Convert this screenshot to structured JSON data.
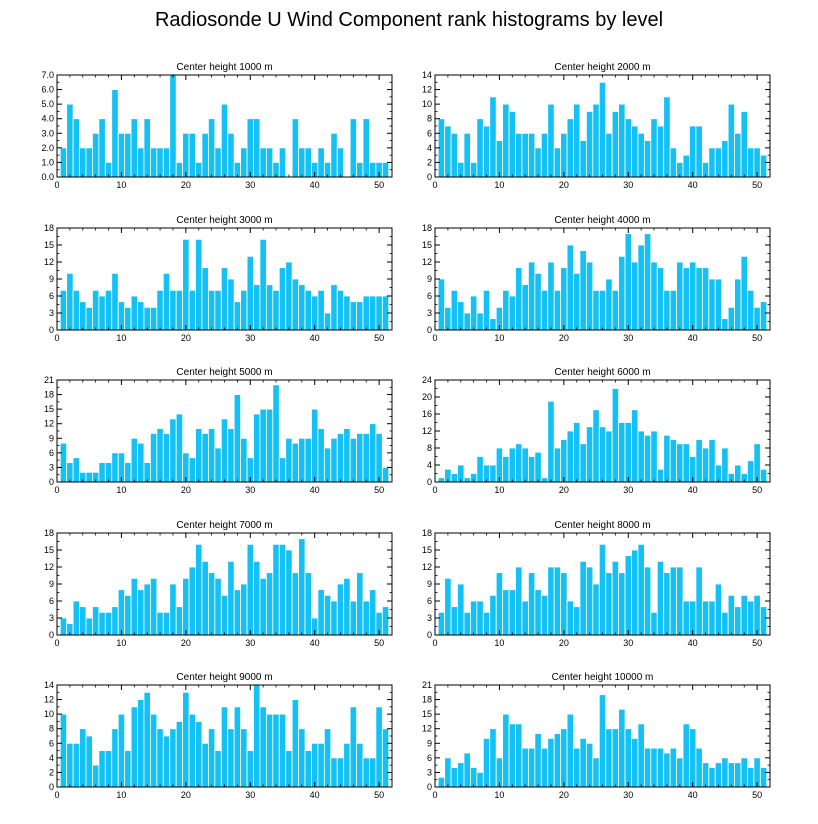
{
  "title": "Radiosonde U Wind Component rank histograms by level",
  "colors": {
    "bar": "#14c1f5",
    "bar_edge": "#ffffff",
    "axis": "#000000"
  },
  "chart_data": [
    {
      "type": "bar",
      "title": "Center height 1000 m",
      "xlim": [
        0,
        52
      ],
      "ylim": [
        0,
        7
      ],
      "xticks": [
        0,
        10,
        20,
        30,
        40,
        50
      ],
      "xtick_labels": [
        "0",
        "10",
        "20",
        "30",
        "40",
        "50"
      ],
      "yticks": [
        0,
        1,
        2,
        3,
        4,
        5,
        6,
        7
      ],
      "ytick_labels": [
        "0.0",
        "1.0",
        "2.0",
        "3.0",
        "4.0",
        "5.0",
        "6.0",
        "7.0"
      ],
      "values": [
        2,
        5,
        4,
        2,
        2,
        3,
        4,
        1,
        6,
        3,
        3,
        4,
        2,
        4,
        2,
        2,
        2,
        7,
        1,
        3,
        3,
        1,
        3,
        4,
        2,
        5,
        3,
        1,
        2,
        4,
        4,
        2,
        2,
        1,
        2,
        0,
        4,
        2,
        2,
        1,
        2,
        1,
        3,
        2,
        0,
        4,
        1,
        4,
        1,
        1,
        1
      ]
    },
    {
      "type": "bar",
      "title": "Center height 2000 m",
      "xlim": [
        0,
        52
      ],
      "ylim": [
        0,
        14
      ],
      "xticks": [
        0,
        10,
        20,
        30,
        40,
        50
      ],
      "xtick_labels": [
        "0",
        "10",
        "20",
        "30",
        "40",
        "50"
      ],
      "yticks": [
        0,
        2,
        4,
        6,
        8,
        10,
        12,
        14
      ],
      "ytick_labels": [
        "0",
        "2",
        "4",
        "6",
        "8",
        "10",
        "12",
        "14"
      ],
      "values": [
        8,
        7,
        6,
        2,
        6,
        2,
        8,
        7,
        11,
        5,
        10,
        9,
        6,
        6,
        6,
        4,
        6,
        10,
        4,
        6,
        8,
        10,
        5,
        9,
        10,
        13,
        6,
        9,
        10,
        8,
        7,
        6,
        5,
        8,
        7,
        11,
        4,
        2,
        3,
        7,
        7,
        2,
        4,
        4,
        5,
        10,
        6,
        9,
        4,
        4,
        3
      ]
    },
    {
      "type": "bar",
      "title": "Center height 3000 m",
      "xlim": [
        0,
        52
      ],
      "ylim": [
        0,
        18
      ],
      "xticks": [
        0,
        10,
        20,
        30,
        40,
        50
      ],
      "xtick_labels": [
        "0",
        "10",
        "20",
        "30",
        "40",
        "50"
      ],
      "yticks": [
        0,
        3,
        6,
        9,
        12,
        15,
        18
      ],
      "ytick_labels": [
        "0",
        "3",
        "6",
        "9",
        "12",
        "15",
        "18"
      ],
      "values": [
        7,
        10,
        7,
        5,
        4,
        7,
        6,
        7,
        10,
        5,
        4,
        6,
        5,
        4,
        4,
        7,
        10,
        7,
        7,
        16,
        7,
        16,
        11,
        7,
        7,
        11,
        9,
        5,
        7,
        13,
        8,
        16,
        8,
        7,
        11,
        12,
        9,
        8,
        7,
        6,
        7,
        3,
        8,
        7,
        6,
        5,
        5,
        6,
        6,
        6,
        6
      ]
    },
    {
      "type": "bar",
      "title": "Center height 4000 m",
      "xlim": [
        0,
        52
      ],
      "ylim": [
        0,
        18
      ],
      "xticks": [
        0,
        10,
        20,
        30,
        40,
        50
      ],
      "xtick_labels": [
        "0",
        "10",
        "20",
        "30",
        "40",
        "50"
      ],
      "yticks": [
        0,
        3,
        6,
        9,
        12,
        15,
        18
      ],
      "ytick_labels": [
        "0",
        "3",
        "6",
        "9",
        "12",
        "15",
        "18"
      ],
      "values": [
        9,
        4,
        7,
        5,
        3,
        6,
        3,
        7,
        2,
        4,
        7,
        6,
        11,
        8,
        12,
        10,
        7,
        12,
        7,
        11,
        15,
        10,
        14,
        12,
        7,
        7,
        9,
        7,
        13,
        17,
        12,
        15,
        17,
        12,
        11,
        7,
        7,
        12,
        11,
        12,
        11,
        11,
        9,
        9,
        2,
        4,
        9,
        13,
        7,
        4,
        5
      ]
    },
    {
      "type": "bar",
      "title": "Center height 5000 m",
      "xlim": [
        0,
        52
      ],
      "ylim": [
        0,
        21
      ],
      "xticks": [
        0,
        10,
        20,
        30,
        40,
        50
      ],
      "xtick_labels": [
        "0",
        "10",
        "20",
        "30",
        "40",
        "50"
      ],
      "yticks": [
        0,
        3,
        6,
        9,
        12,
        15,
        18,
        21
      ],
      "ytick_labels": [
        "0",
        "3",
        "6",
        "9",
        "12",
        "15",
        "18",
        "21"
      ],
      "values": [
        8,
        4,
        5,
        2,
        2,
        2,
        4,
        4,
        6,
        6,
        4,
        9,
        8,
        4,
        10,
        11,
        10,
        13,
        14,
        6,
        5,
        11,
        10,
        11,
        7,
        13,
        11,
        18,
        9,
        5,
        14,
        15,
        15,
        20,
        5,
        9,
        8,
        9,
        9,
        15,
        11,
        7,
        9,
        10,
        11,
        9,
        10,
        10,
        12,
        10,
        3
      ]
    },
    {
      "type": "bar",
      "title": "Center height 6000 m",
      "xlim": [
        0,
        52
      ],
      "ylim": [
        0,
        24
      ],
      "xticks": [
        0,
        10,
        20,
        30,
        40,
        50
      ],
      "xtick_labels": [
        "0",
        "10",
        "20",
        "30",
        "40",
        "50"
      ],
      "yticks": [
        0,
        4,
        8,
        12,
        16,
        20,
        24
      ],
      "ytick_labels": [
        "0",
        "4",
        "8",
        "12",
        "16",
        "20",
        "24"
      ],
      "values": [
        1,
        3,
        2,
        4,
        1,
        2,
        6,
        4,
        4,
        8,
        6,
        8,
        9,
        8,
        6,
        7,
        1,
        19,
        8,
        10,
        12,
        14,
        9,
        13,
        17,
        13,
        12,
        22,
        14,
        14,
        17,
        12,
        11,
        12,
        3,
        11,
        10,
        9,
        9,
        6,
        10,
        8,
        10,
        4,
        8,
        2,
        4,
        2,
        5,
        9,
        3
      ]
    },
    {
      "type": "bar",
      "title": "Center height 7000 m",
      "xlim": [
        0,
        52
      ],
      "ylim": [
        0,
        18
      ],
      "xticks": [
        0,
        10,
        20,
        30,
        40,
        50
      ],
      "xtick_labels": [
        "0",
        "10",
        "20",
        "30",
        "40",
        "50"
      ],
      "yticks": [
        0,
        3,
        6,
        9,
        12,
        15,
        18
      ],
      "ytick_labels": [
        "0",
        "3",
        "6",
        "9",
        "12",
        "15",
        "18"
      ],
      "values": [
        3,
        2,
        6,
        5,
        3,
        5,
        4,
        4,
        5,
        8,
        7,
        10,
        8,
        9,
        10,
        4,
        4,
        9,
        5,
        10,
        12,
        16,
        13,
        11,
        10,
        7,
        13,
        8,
        9,
        16,
        13,
        10,
        11,
        16,
        16,
        15,
        11,
        17,
        11,
        3,
        8,
        7,
        6,
        9,
        10,
        6,
        11,
        6,
        8,
        4,
        5
      ]
    },
    {
      "type": "bar",
      "title": "Center height 8000 m",
      "xlim": [
        0,
        52
      ],
      "ylim": [
        0,
        18
      ],
      "xticks": [
        0,
        10,
        20,
        30,
        40,
        50
      ],
      "xtick_labels": [
        "0",
        "10",
        "20",
        "30",
        "40",
        "50"
      ],
      "yticks": [
        0,
        3,
        6,
        9,
        12,
        15,
        18
      ],
      "ytick_labels": [
        "0",
        "3",
        "6",
        "9",
        "12",
        "15",
        "18"
      ],
      "values": [
        4,
        10,
        5,
        9,
        4,
        6,
        6,
        4,
        7,
        11,
        8,
        8,
        12,
        6,
        11,
        8,
        7,
        12,
        12,
        11,
        6,
        5,
        13,
        12,
        9,
        16,
        11,
        13,
        11,
        14,
        15,
        16,
        12,
        4,
        13,
        11,
        12,
        12,
        6,
        6,
        12,
        6,
        6,
        9,
        4,
        7,
        5,
        7,
        6,
        7,
        5
      ]
    },
    {
      "type": "bar",
      "title": "Center height 9000 m",
      "xlim": [
        0,
        52
      ],
      "ylim": [
        0,
        14
      ],
      "xticks": [
        0,
        10,
        20,
        30,
        40,
        50
      ],
      "xtick_labels": [
        "0",
        "10",
        "20",
        "30",
        "40",
        "50"
      ],
      "yticks": [
        0,
        2,
        4,
        6,
        8,
        10,
        12,
        14
      ],
      "ytick_labels": [
        "0",
        "2",
        "4",
        "6",
        "8",
        "10",
        "12",
        "14"
      ],
      "values": [
        10,
        6,
        6,
        8,
        7,
        3,
        5,
        5,
        8,
        10,
        5,
        11,
        12,
        13,
        10,
        8,
        7,
        8,
        9,
        13,
        10,
        9,
        6,
        8,
        5,
        11,
        8,
        11,
        8,
        5,
        14,
        11,
        10,
        10,
        10,
        5,
        12,
        8,
        5,
        6,
        6,
        8,
        4,
        4,
        6,
        11,
        6,
        4,
        4,
        11,
        8
      ]
    },
    {
      "type": "bar",
      "title": "Center height 10000 m",
      "xlim": [
        0,
        52
      ],
      "ylim": [
        0,
        21
      ],
      "xticks": [
        0,
        10,
        20,
        30,
        40,
        50
      ],
      "xtick_labels": [
        "0",
        "10",
        "20",
        "30",
        "40",
        "50"
      ],
      "yticks": [
        0,
        3,
        6,
        9,
        12,
        15,
        18,
        21
      ],
      "ytick_labels": [
        "0",
        "3",
        "6",
        "9",
        "12",
        "15",
        "18",
        "21"
      ],
      "values": [
        2,
        6,
        4,
        5,
        7,
        4,
        3,
        10,
        12,
        6,
        15,
        13,
        13,
        8,
        8,
        11,
        8,
        10,
        11,
        12,
        15,
        8,
        10,
        9,
        6,
        19,
        12,
        12,
        16,
        12,
        10,
        13,
        8,
        8,
        8,
        7,
        8,
        6,
        13,
        12,
        8,
        5,
        4,
        5,
        6,
        5,
        5,
        6,
        4,
        6,
        4
      ]
    }
  ]
}
